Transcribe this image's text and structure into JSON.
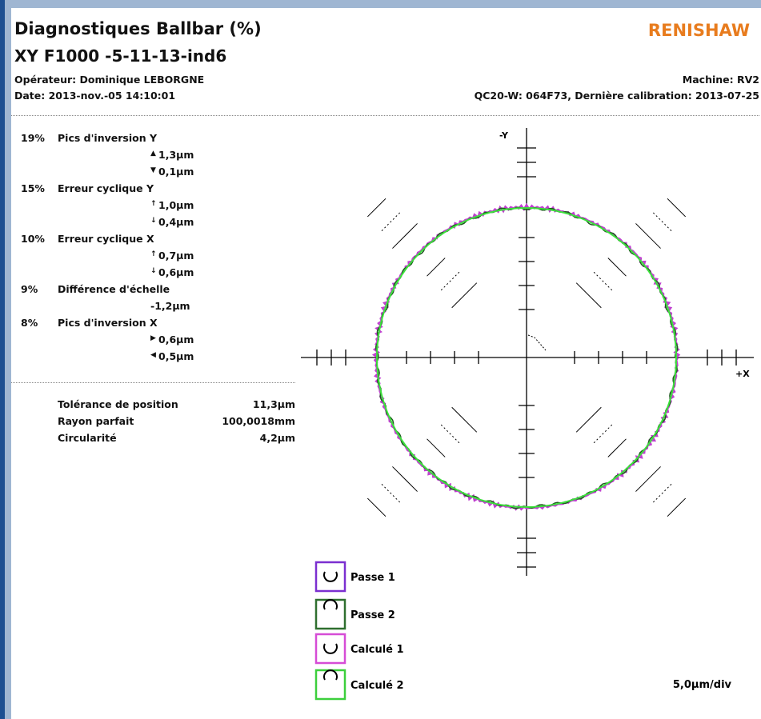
{
  "header": {
    "title": "Diagnostiques Ballbar (%)",
    "subtitle": "XY F1000 -5-11-13-ind6",
    "operator": "Opérateur: Dominique LEBORGNE",
    "date": "Date: 2013-nov.-05 14:10:01",
    "machine": "Machine: RV2",
    "calibration": "QC20-W: 064F73, Dernière calibration: 2013-07-25",
    "logo": "RENISHAW"
  },
  "diagnostics": [
    {
      "percent": "19%",
      "name": "Pics d'inversion Y",
      "values": [
        "1,3µm",
        "0,1µm"
      ]
    },
    {
      "percent": "15%",
      "name": "Erreur cyclique Y",
      "values": [
        "1,0µm",
        "0,4µm"
      ]
    },
    {
      "percent": "10%",
      "name": "Erreur cyclique X",
      "values": [
        "0,7µm",
        "0,6µm"
      ]
    },
    {
      "percent": "9%",
      "name": "Différence d'échelle",
      "values": [
        "-1,2µm"
      ]
    },
    {
      "percent": "8%",
      "name": "Pics d'inversion X",
      "values": [
        "0,6µm",
        "0,5µm"
      ]
    }
  ],
  "summary": [
    [
      "Tolérance de position",
      "11,3µm"
    ],
    [
      "Rayon parfait",
      "100,0018mm"
    ],
    [
      "Circularité",
      "4,2µm"
    ]
  ],
  "plot": {
    "y_label": "-Y",
    "x_label": "+X",
    "scale": "5,0µm/div",
    "legend": [
      "Passe 1",
      "Passe 2",
      "Calculé 1",
      "Calculé 2"
    ]
  }
}
